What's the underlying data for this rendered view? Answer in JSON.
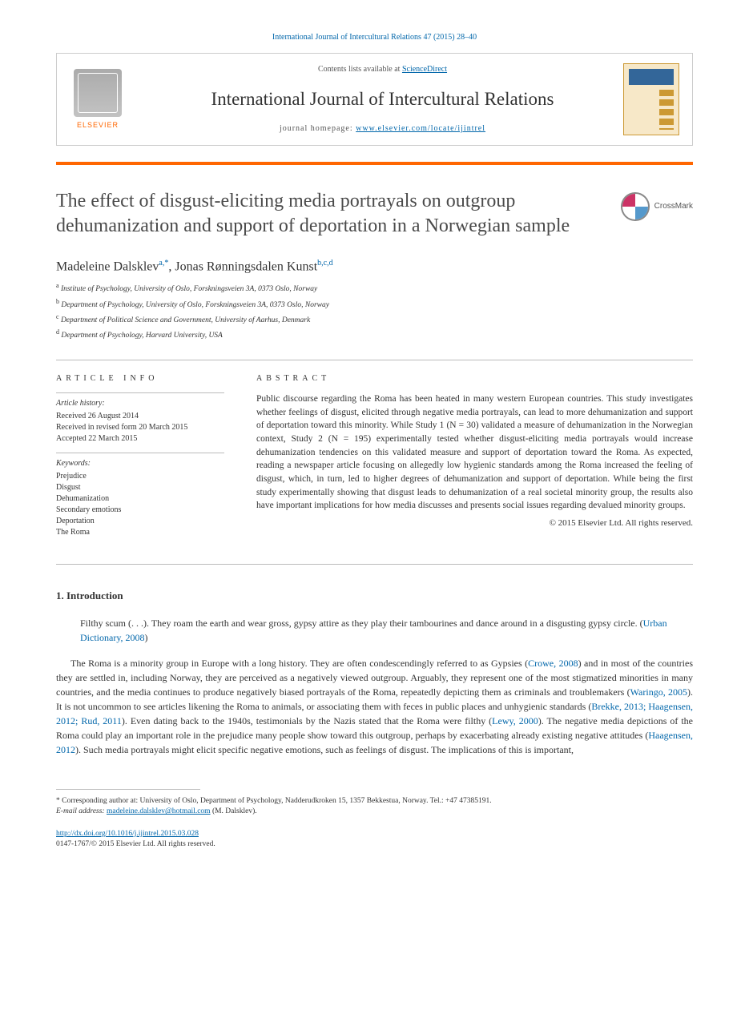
{
  "header": {
    "citation": "International Journal of Intercultural Relations 47 (2015) 28–40",
    "contents_prefix": "Contents lists available at ",
    "contents_link": "ScienceDirect",
    "journal_name": "International Journal of Intercultural Relations",
    "homepage_prefix": "journal homepage: ",
    "homepage_url": "www.elsevier.com/locate/ijintrel",
    "elsevier_label": "ELSEVIER"
  },
  "crossmark": {
    "label": "CrossMark"
  },
  "title": "The effect of disgust-eliciting media portrayals on outgroup dehumanization and support of deportation in a Norwegian sample",
  "authors": {
    "a1_name": "Madeleine Dalsklev",
    "a1_sup": "a,*",
    "sep": ", ",
    "a2_name": "Jonas Rønningsdalen Kunst",
    "a2_sup": "b,c,d"
  },
  "affiliations": {
    "a": "Institute of Psychology, University of Oslo, Forskningsveien 3A, 0373 Oslo, Norway",
    "b": "Department of Psychology, University of Oslo, Forskningsveien 3A, 0373 Oslo, Norway",
    "c": "Department of Political Science and Government, University of Aarhus, Denmark",
    "d": "Department of Psychology, Harvard University, USA"
  },
  "info": {
    "heading": "ARTICLE INFO",
    "history_label": "Article history:",
    "received": "Received 26 August 2014",
    "revised": "Received in revised form 20 March 2015",
    "accepted": "Accepted 22 March 2015",
    "keywords_label": "Keywords:",
    "keywords": [
      "Prejudice",
      "Disgust",
      "Dehumanization",
      "Secondary emotions",
      "Deportation",
      "The Roma"
    ]
  },
  "abstract": {
    "heading": "ABSTRACT",
    "text": "Public discourse regarding the Roma has been heated in many western European countries. This study investigates whether feelings of disgust, elicited through negative media portrayals, can lead to more dehumanization and support of deportation toward this minority. While Study 1 (N = 30) validated a measure of dehumanization in the Norwegian context, Study 2 (N = 195) experimentally tested whether disgust-eliciting media portrayals would increase dehumanization tendencies on this validated measure and support of deportation toward the Roma. As expected, reading a newspaper article focusing on allegedly low hygienic standards among the Roma increased the feeling of disgust, which, in turn, led to higher degrees of dehumanization and support of deportation. While being the first study experimentally showing that disgust leads to dehumanization of a real societal minority group, the results also have important implications for how media discusses and presents social issues regarding devalued minority groups.",
    "copyright": "© 2015 Elsevier Ltd. All rights reserved."
  },
  "body": {
    "section_heading": "1.  Introduction",
    "quote": "Filthy scum (. . .). They roam the earth and wear gross, gypsy attire as they play their tambourines and dance around in a disgusting gypsy circle. (",
    "quote_cite": "Urban Dictionary, 2008",
    "quote_close": ")",
    "p1_a": "The Roma is a minority group in Europe with a long history. They are often condescendingly referred to as Gypsies (",
    "p1_cite1": "Crowe, 2008",
    "p1_b": ") and in most of the countries they are settled in, including Norway, they are perceived as a negatively viewed outgroup. Arguably, they represent one of the most stigmatized minorities in many countries, and the media continues to produce negatively biased portrayals of the Roma, repeatedly depicting them as criminals and troublemakers (",
    "p1_cite2": "Waringo, 2005",
    "p1_c": "). It is not uncommon to see articles likening the Roma to animals, or associating them with feces in public places and unhygienic standards (",
    "p1_cite3": "Brekke, 2013; Haagensen, 2012; Rud, 2011",
    "p1_d": "). Even dating back to the 1940s, testimonials by the Nazis stated that the Roma were filthy (",
    "p1_cite4": "Lewy, 2000",
    "p1_e": "). The negative media depictions of the Roma could play an important role in the prejudice many people show toward this outgroup, perhaps by exacerbating already existing negative attitudes (",
    "p1_cite5": "Haagensen, 2012",
    "p1_f": "). Such media portrayals might elicit specific negative emotions, such as feelings of disgust. The implications of this is important,"
  },
  "footnote": {
    "corr_label": "* Corresponding author at: University of Oslo, Department of Psychology, Nadderudkroken 15, 1357 Bekkestua, Norway. Tel.: +47 47385191.",
    "email_label": "E-mail address: ",
    "email": "madeleine.dalsklev@hotmail.com",
    "email_suffix": " (M. Dalsklev)."
  },
  "doi": {
    "url": "http://dx.doi.org/10.1016/j.ijintrel.2015.03.028",
    "issn_line": "0147-1767/© 2015 Elsevier Ltd. All rights reserved."
  },
  "colors": {
    "link": "#0066aa",
    "accent": "#ff6600",
    "text": "#333333"
  }
}
